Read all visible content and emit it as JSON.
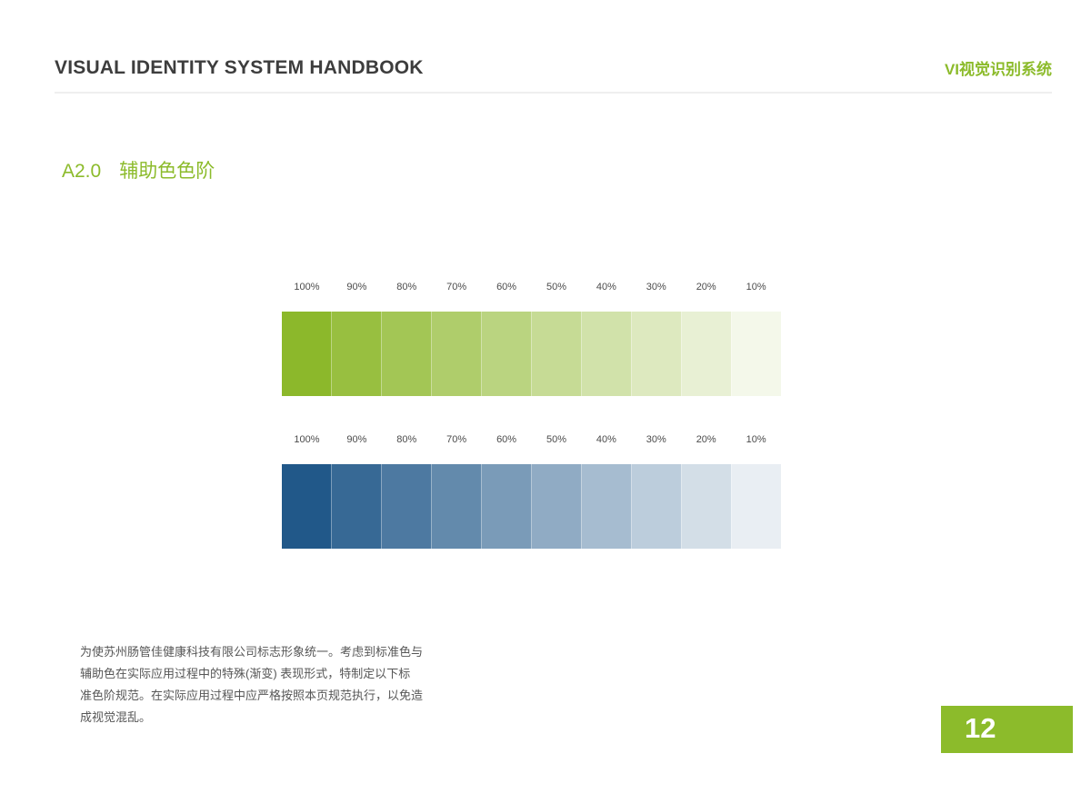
{
  "header": {
    "title": "VISUAL IDENTITY SYSTEM HANDBOOK",
    "subtitle": "VI视觉识别系统"
  },
  "section": {
    "code": "A2.0",
    "title": "辅助色色阶"
  },
  "scales": [
    {
      "name": "green-auxiliary",
      "labels": [
        "100%",
        "90%",
        "80%",
        "70%",
        "60%",
        "50%",
        "40%",
        "30%",
        "20%",
        "10%"
      ],
      "colors": [
        "#8CB82B",
        "#98BF40",
        "#A3C655",
        "#AFCD6B",
        "#BAD480",
        "#C6DB95",
        "#D1E2AA",
        "#DDE9BF",
        "#E8F0D4",
        "#F4F8EA"
      ]
    },
    {
      "name": "blue-auxiliary",
      "labels": [
        "100%",
        "90%",
        "80%",
        "70%",
        "60%",
        "50%",
        "40%",
        "30%",
        "20%",
        "10%"
      ],
      "colors": [
        "#215889",
        "#376995",
        "#4D79A1",
        "#638AAC",
        "#7A9BB8",
        "#90ABC4",
        "#A6BCD0",
        "#BCCDDC",
        "#D3DEE7",
        "#E9EEF3"
      ]
    }
  ],
  "note": {
    "lines": [
      "为使苏州肠管佳健康科技有限公司标志形象统一。考虑到标准色与",
      "辅助色在实际应用过程中的特殊(渐变) 表现形式，特制定以下标",
      "准色阶规范。在实际应用过程中应严格按照本页规范执行，以免造",
      "成视觉混乱。"
    ]
  },
  "page_number": "12",
  "colors": {
    "accent_green": "#8CBB2B",
    "title_gray": "#3D3D3D",
    "note_gray": "#565656",
    "rule_gray": "#EFEFEF"
  }
}
